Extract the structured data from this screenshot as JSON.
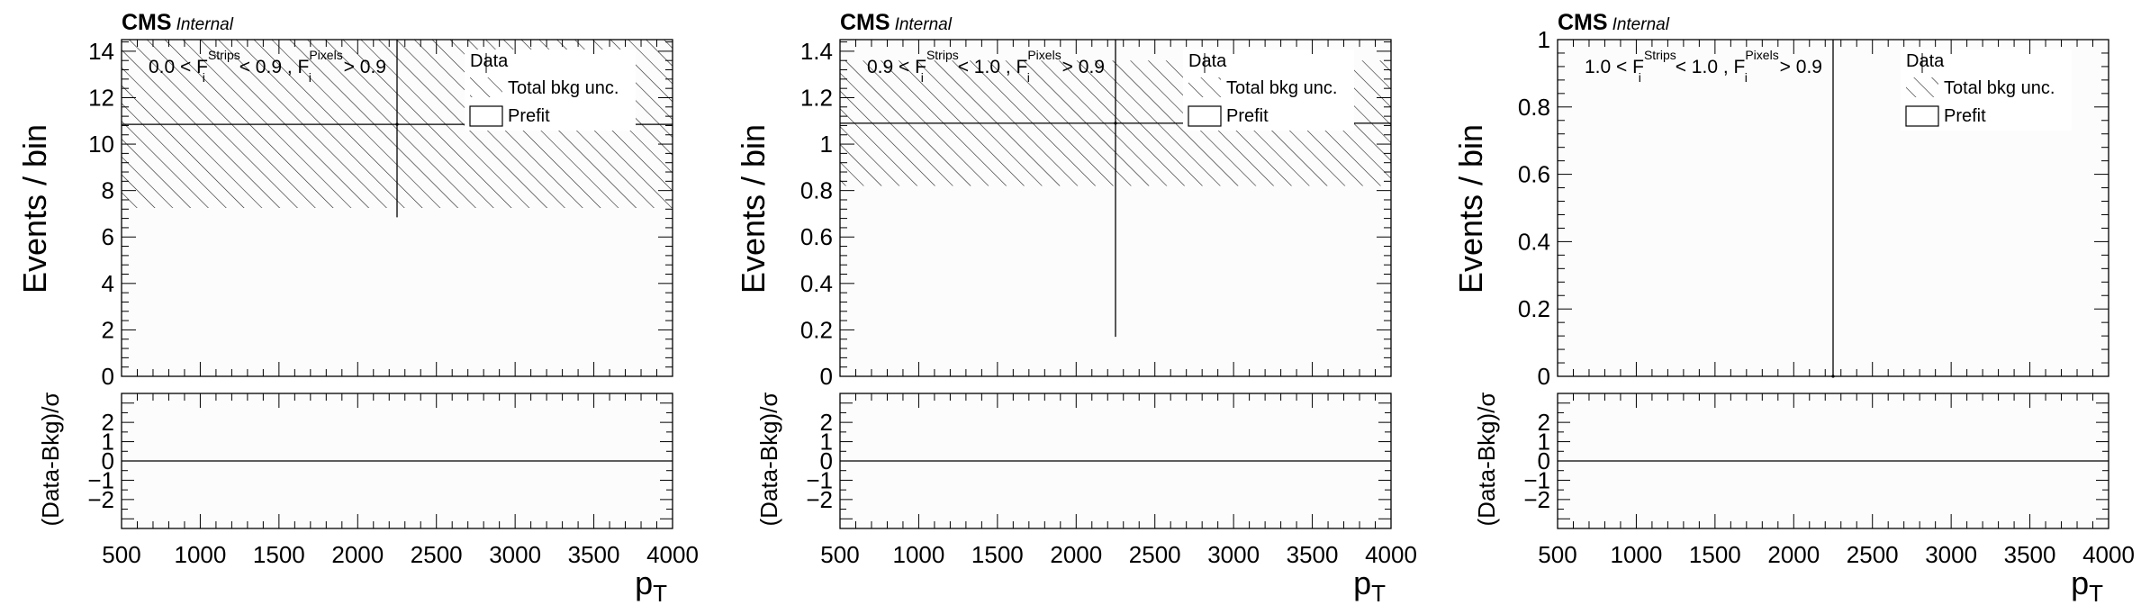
{
  "figure": {
    "background": "#ffffff",
    "plot_fill": "#fcfcfc",
    "hatch_color": "#222222"
  },
  "chart_data": [
    {
      "type": "bar",
      "cms_label": "CMS",
      "internal_label": "Internal",
      "ylabel": "Events / bin",
      "ratio_ylabel": "(Data-Bkg)/σ",
      "xlabel_main": "p",
      "xlabel_sub": "T",
      "xlim": [
        500,
        4000
      ],
      "ylim": [
        0,
        14.5
      ],
      "yticks": [
        0,
        2,
        4,
        6,
        8,
        10,
        12,
        14
      ],
      "ytick_labels": [
        "0",
        "2",
        "4",
        "6",
        "8",
        "10",
        "12",
        "14"
      ],
      "xticks": [
        500,
        1000,
        1500,
        2000,
        2500,
        3000,
        3500,
        4000
      ],
      "xtick_labels": [
        "500",
        "1000",
        "1500",
        "2000",
        "2500",
        "3000",
        "3500",
        "4000"
      ],
      "ratio_ylim": [
        -3.5,
        3.5
      ],
      "ratio_yticks": [
        -2,
        -1,
        0,
        1,
        2
      ],
      "ratio_ytick_labels": [
        "−2",
        "−1",
        "0",
        "1",
        "2"
      ],
      "cut": {
        "pre": "0.0 < F",
        "sub1": "i",
        "sup1": "Strips",
        "mid": " < 0.9 , F",
        "sub2": "i",
        "sup2": "Pixels",
        "post": " > 0.9"
      },
      "legend": {
        "data": "Data",
        "unc": "Total bkg unc.",
        "prefit": "Prefit"
      },
      "prefit_value": 10.85,
      "unc_band": [
        7.25,
        14.5
      ],
      "data_points": [
        {
          "x": 2250,
          "y": 10.85,
          "yerr_low": 4.0,
          "yerr_high": 4.5
        }
      ],
      "ratio_line": 0
    },
    {
      "type": "bar",
      "cms_label": "CMS",
      "internal_label": "Internal",
      "ylabel": "Events / bin",
      "ratio_ylabel": "(Data-Bkg)/σ",
      "xlabel_main": "p",
      "xlabel_sub": "T",
      "xlim": [
        500,
        4000
      ],
      "ylim": [
        0,
        1.45
      ],
      "yticks": [
        0,
        0.2,
        0.4,
        0.6,
        0.8,
        1.0,
        1.2,
        1.4
      ],
      "ytick_labels": [
        "0",
        "0.2",
        "0.4",
        "0.6",
        "0.8",
        "1",
        "1.2",
        "1.4"
      ],
      "xticks": [
        500,
        1000,
        1500,
        2000,
        2500,
        3000,
        3500,
        4000
      ],
      "xtick_labels": [
        "500",
        "1000",
        "1500",
        "2000",
        "2500",
        "3000",
        "3500",
        "4000"
      ],
      "ratio_ylim": [
        -3.5,
        3.5
      ],
      "ratio_yticks": [
        -2,
        -1,
        0,
        1,
        2
      ],
      "ratio_ytick_labels": [
        "−2",
        "−1",
        "0",
        "1",
        "2"
      ],
      "cut": {
        "pre": "0.9 < F",
        "sub1": "i",
        "sup1": "Strips",
        "mid": " < 1.0 , F",
        "sub2": "i",
        "sup2": "Pixels",
        "post": " > 0.9"
      },
      "legend": {
        "data": "Data",
        "unc": "Total bkg unc.",
        "prefit": "Prefit"
      },
      "prefit_value": 1.09,
      "unc_band": [
        0.82,
        1.36
      ],
      "data_points": [
        {
          "x": 2250,
          "y": 1.09,
          "yerr_low": 0.92,
          "yerr_high": 0.36
        }
      ],
      "ratio_line": 0
    },
    {
      "type": "bar",
      "cms_label": "CMS",
      "internal_label": "Internal",
      "ylabel": "Events / bin",
      "ratio_ylabel": "(Data-Bkg)/σ",
      "xlabel_main": "p",
      "xlabel_sub": "T",
      "xlim": [
        500,
        4000
      ],
      "ylim": [
        0,
        1.0
      ],
      "yticks": [
        0,
        0.2,
        0.4,
        0.6,
        0.8,
        1.0
      ],
      "ytick_labels": [
        "0",
        "0.2",
        "0.4",
        "0.6",
        "0.8",
        "1"
      ],
      "xticks": [
        500,
        1000,
        1500,
        2000,
        2500,
        3000,
        3500,
        4000
      ],
      "xtick_labels": [
        "500",
        "1000",
        "1500",
        "2000",
        "2500",
        "3000",
        "3500",
        "4000"
      ],
      "ratio_ylim": [
        -3.5,
        3.5
      ],
      "ratio_yticks": [
        -2,
        -1,
        0,
        1,
        2
      ],
      "ratio_ytick_labels": [
        "−2",
        "−1",
        "0",
        "1",
        "2"
      ],
      "cut": {
        "pre": "1.0 < F",
        "sub1": "i",
        "sup1": "Strips",
        "mid": " < 1.0 , F",
        "sub2": "i",
        "sup2": "Pixels",
        "post": " > 0.9"
      },
      "legend": {
        "data": "Data",
        "unc": "Total bkg unc.",
        "prefit": "Prefit"
      },
      "prefit_value": 0,
      "unc_band": null,
      "data_points": [
        {
          "x": 2250,
          "y": 0,
          "yerr_low": 0,
          "yerr_high": 1.0
        }
      ],
      "ratio_line": 0
    }
  ]
}
